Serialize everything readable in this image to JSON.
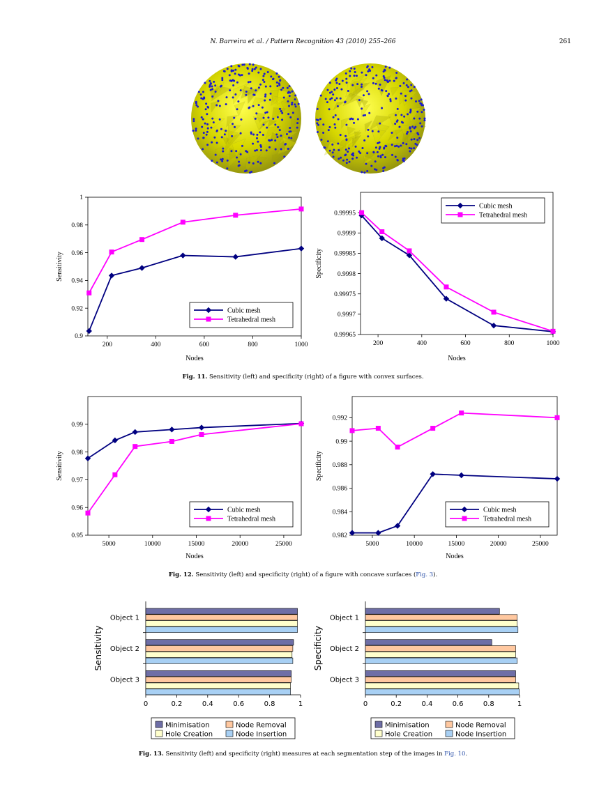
{
  "header": {
    "journal": "N. Barreira et al. / Pattern Recognition 43 (2010) 255–266",
    "page_number": "261"
  },
  "figures": {
    "fig11": {
      "label": "Fig. 11.",
      "text": " Sensitivity (left) and specificity (right) of a figure with convex surfaces."
    },
    "fig12": {
      "label": "Fig. 12.",
      "text": " Sensitivity (left) and specificity (right) of a figure with concave surfaces (",
      "ref": "Fig. 3",
      "tail": ")."
    },
    "fig13": {
      "label": "Fig. 13.",
      "text": " Sensitivity (left) and specificity (right) measures at each segmentation step of the images in ",
      "ref": "Fig. 10",
      "tail": "."
    }
  },
  "colors": {
    "cubic": "#000080",
    "tetra": "#ff00ff",
    "sphere": "#c8c800",
    "points": "#1a1ad0",
    "minimisation": "#6e6ea6",
    "node_removal": "#ffc8a0",
    "hole_creation": "#ffffcc",
    "node_insertion": "#a8d0f4"
  },
  "chart_data": [
    {
      "id": "fig11-left",
      "type": "line",
      "xlabel": "Nodes",
      "ylabel": "Sensitivity",
      "xlim": [
        120,
        1000
      ],
      "ylim": [
        0.9,
        1
      ],
      "xticks": [
        200,
        400,
        600,
        800,
        1000
      ],
      "yticks": [
        0.9,
        0.92,
        0.94,
        0.96,
        0.98,
        1
      ],
      "yticklabels": [
        "0.9",
        "0.92",
        "0.94",
        "0.96",
        "0.98",
        "1"
      ],
      "legend": "bottom-right",
      "series": [
        {
          "name": "Cubic mesh",
          "color": "#000080",
          "marker": "diamond",
          "x": [
            125,
            218,
            343,
            512,
            729,
            1000
          ],
          "y": [
            0.9035,
            0.9435,
            0.949,
            0.958,
            0.957,
            0.963
          ]
        },
        {
          "name": "Tetrahedral mesh",
          "color": "#ff00ff",
          "marker": "square",
          "x": [
            125,
            218,
            343,
            512,
            729,
            1000
          ],
          "y": [
            0.931,
            0.9605,
            0.9695,
            0.982,
            0.987,
            0.9915
          ]
        }
      ]
    },
    {
      "id": "fig11-right",
      "type": "line",
      "xlabel": "Nodes",
      "ylabel": "Specificity",
      "xlim": [
        120,
        1000
      ],
      "ylim": [
        0.99965,
        1.0
      ],
      "xticks": [
        200,
        400,
        600,
        800,
        1000
      ],
      "yticks": [
        0.99965,
        0.9997,
        0.99975,
        0.9998,
        0.99985,
        0.9999,
        0.99995
      ],
      "yticklabels": [
        "0.99965",
        "0.9997",
        "0.99975",
        "0.9998",
        "0.99985",
        "0.9999",
        "0.99995"
      ],
      "legend": "top-right",
      "series": [
        {
          "name": "Cubic mesh",
          "color": "#000080",
          "marker": "diamond",
          "x": [
            125,
            218,
            343,
            512,
            729,
            1000
          ],
          "y": [
            0.999943,
            0.999887,
            0.999845,
            0.999738,
            0.999672,
            0.999657
          ]
        },
        {
          "name": "Tetrahedral mesh",
          "color": "#ff00ff",
          "marker": "square",
          "x": [
            125,
            218,
            343,
            512,
            729,
            1000
          ],
          "y": [
            0.99995,
            0.999903,
            0.999856,
            0.999767,
            0.999705,
            0.999658
          ]
        }
      ]
    },
    {
      "id": "fig12-left",
      "type": "line",
      "xlabel": "Nodes",
      "ylabel": "Sensitivity",
      "xlim": [
        2600,
        27000
      ],
      "ylim": [
        0.95,
        1.0
      ],
      "xticks": [
        5000,
        10000,
        15000,
        20000,
        25000
      ],
      "yticks": [
        0.95,
        0.96,
        0.97,
        0.98,
        0.99
      ],
      "yticklabels": [
        "0.95",
        "0.96",
        "0.97",
        "0.98",
        "0.99"
      ],
      "legend": "bottom-right",
      "series": [
        {
          "name": "Cubic mesh",
          "color": "#000080",
          "marker": "diamond",
          "x": [
            2600,
            5700,
            8000,
            12200,
            15600,
            27000
          ],
          "y": [
            0.9777,
            0.9842,
            0.9872,
            0.9881,
            0.9888,
            0.9903
          ]
        },
        {
          "name": "Tetrahedral mesh",
          "color": "#ff00ff",
          "marker": "square",
          "x": [
            2600,
            5700,
            8000,
            12200,
            15600,
            27000
          ],
          "y": [
            0.958,
            0.9718,
            0.982,
            0.9838,
            0.9863,
            0.9902
          ]
        }
      ]
    },
    {
      "id": "fig12-right",
      "type": "line",
      "xlabel": "Nodes",
      "ylabel": "Specificity",
      "xlim": [
        2600,
        27000
      ],
      "ylim": [
        0.982,
        0.9938
      ],
      "xticks": [
        5000,
        10000,
        15000,
        20000,
        25000
      ],
      "yticks": [
        0.982,
        0.984,
        0.986,
        0.988,
        0.99,
        0.992
      ],
      "yticklabels": [
        "0.982",
        "0.984",
        "0.986",
        "0.988",
        "0.99",
        "0.992"
      ],
      "legend": "bottom-right",
      "series": [
        {
          "name": "Cubic mesh",
          "color": "#000080",
          "marker": "diamond",
          "x": [
            2600,
            5700,
            8000,
            12200,
            15600,
            27000
          ],
          "y": [
            0.9822,
            0.9822,
            0.9828,
            0.9872,
            0.9871,
            0.9868
          ]
        },
        {
          "name": "Tetrahedral mesh",
          "color": "#ff00ff",
          "marker": "square",
          "x": [
            2600,
            5700,
            8000,
            12200,
            15600,
            27000
          ],
          "y": [
            0.9909,
            0.9911,
            0.9895,
            0.9911,
            0.9924,
            0.992
          ]
        }
      ]
    },
    {
      "id": "fig13-left",
      "type": "bar",
      "orientation": "horizontal",
      "ylabel": "Sensitivity",
      "xlim": [
        0,
        1
      ],
      "xticks": [
        0,
        0.2,
        0.4,
        0.6,
        0.8,
        1
      ],
      "xticklabels": [
        "0",
        "0.2",
        "0.4",
        "0.6",
        "0.8",
        "1"
      ],
      "categories": [
        "Object 1",
        "Object 2",
        "Object 3"
      ],
      "series": [
        {
          "name": "Minimisation",
          "color": "#6e6ea6",
          "values": [
            0.98,
            0.955,
            0.94
          ]
        },
        {
          "name": "Node Removal",
          "color": "#ffc8a0",
          "values": [
            0.98,
            0.95,
            0.94
          ]
        },
        {
          "name": "Hole Creation",
          "color": "#ffffcc",
          "values": [
            0.98,
            0.945,
            0.935
          ]
        },
        {
          "name": "Node Insertion",
          "color": "#a8d0f4",
          "values": [
            0.98,
            0.95,
            0.935
          ]
        }
      ]
    },
    {
      "id": "fig13-right",
      "type": "bar",
      "orientation": "horizontal",
      "ylabel": "Specificity",
      "xlim": [
        0,
        1
      ],
      "xticks": [
        0,
        0.2,
        0.4,
        0.6,
        0.8,
        1
      ],
      "xticklabels": [
        "0",
        "0.2",
        "0.4",
        "0.6",
        "0.8",
        "1"
      ],
      "categories": [
        "Object 1",
        "Object 2",
        "Object 3"
      ],
      "series": [
        {
          "name": "Minimisation",
          "color": "#6e6ea6",
          "values": [
            0.87,
            0.82,
            0.975
          ]
        },
        {
          "name": "Node Removal",
          "color": "#ffc8a0",
          "values": [
            0.985,
            0.975,
            0.975
          ]
        },
        {
          "name": "Hole Creation",
          "color": "#ffffcc",
          "values": [
            0.985,
            0.975,
            0.995
          ]
        },
        {
          "name": "Node Insertion",
          "color": "#a8d0f4",
          "values": [
            0.99,
            0.985,
            0.998
          ]
        }
      ]
    }
  ]
}
